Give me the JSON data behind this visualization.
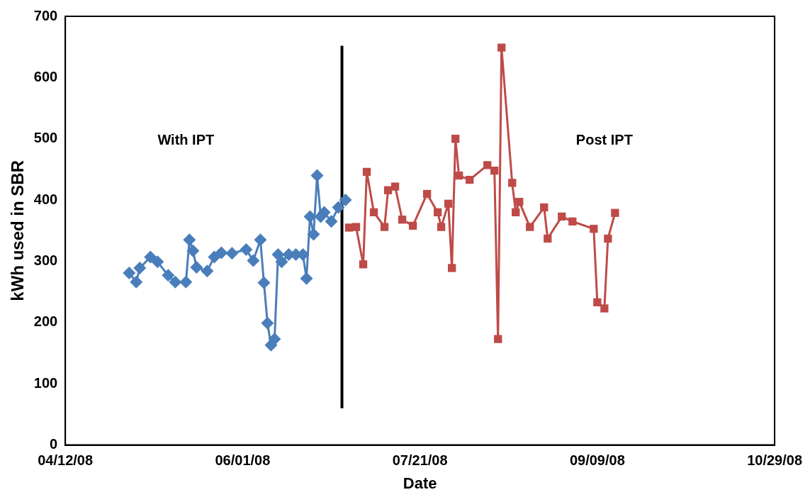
{
  "chart_data": {
    "type": "line",
    "xlabel": "Date",
    "ylabel": "kWh used in SBR",
    "xlim": [
      "2008-04-12",
      "2008-10-29"
    ],
    "xticks": [
      {
        "value": "2008-04-12",
        "label": "04/12/08"
      },
      {
        "value": "2008-06-01",
        "label": "06/01/08"
      },
      {
        "value": "2008-07-21",
        "label": "07/21/08"
      },
      {
        "value": "2008-09-09",
        "label": "09/09/08"
      },
      {
        "value": "2008-10-29",
        "label": "10/29/08"
      }
    ],
    "ylim": [
      0,
      700
    ],
    "yticks": [
      0,
      100,
      200,
      300,
      400,
      500,
      600,
      700
    ],
    "grid": false,
    "legend": false,
    "series": [
      {
        "color": "#4a7ebb",
        "marker": "diamond",
        "x": [
          "2008-04-30",
          "2008-05-02",
          "2008-05-03",
          "2008-05-06",
          "2008-05-08",
          "2008-05-11",
          "2008-05-13",
          "2008-05-16",
          "2008-05-17",
          "2008-05-18",
          "2008-05-19",
          "2008-05-22",
          "2008-05-24",
          "2008-05-26",
          "2008-05-29",
          "2008-06-02",
          "2008-06-04",
          "2008-06-06",
          "2008-06-07",
          "2008-06-08",
          "2008-06-09",
          "2008-06-10",
          "2008-06-11",
          "2008-06-12",
          "2008-06-14",
          "2008-06-16",
          "2008-06-18",
          "2008-06-19",
          "2008-06-20",
          "2008-06-21",
          "2008-06-22",
          "2008-06-23",
          "2008-06-24",
          "2008-06-26",
          "2008-06-28",
          "2008-06-30"
        ],
        "values": [
          281,
          266,
          289,
          307,
          299,
          277,
          266,
          266,
          335,
          317,
          290,
          284,
          307,
          314,
          313,
          319,
          301,
          335,
          265,
          199,
          163,
          173,
          311,
          299,
          311,
          311,
          311,
          272,
          373,
          344,
          440,
          373,
          380,
          365,
          388,
          400
        ]
      },
      {
        "color": "#be4b48",
        "marker": "square",
        "x": [
          "2008-07-01",
          "2008-07-03",
          "2008-07-05",
          "2008-07-06",
          "2008-07-08",
          "2008-07-11",
          "2008-07-12",
          "2008-07-14",
          "2008-07-16",
          "2008-07-19",
          "2008-07-23",
          "2008-07-26",
          "2008-07-27",
          "2008-07-29",
          "2008-07-30",
          "2008-07-31",
          "2008-08-01",
          "2008-08-04",
          "2008-08-09",
          "2008-08-11",
          "2008-08-12",
          "2008-08-13",
          "2008-08-16",
          "2008-08-17",
          "2008-08-18",
          "2008-08-21",
          "2008-08-25",
          "2008-08-26",
          "2008-08-30",
          "2008-09-02",
          "2008-09-08",
          "2008-09-09",
          "2008-09-11",
          "2008-09-12",
          "2008-09-14"
        ],
        "values": [
          355,
          356,
          295,
          446,
          380,
          356,
          416,
          422,
          368,
          358,
          410,
          380,
          356,
          394,
          289,
          500,
          440,
          433,
          457,
          448,
          173,
          649,
          428,
          380,
          397,
          356,
          388,
          337,
          373,
          365,
          353,
          233,
          223,
          337,
          379
        ]
      },
      {
        "color": "#000000",
        "marker": "none",
        "x": [
          "2008-06-29",
          "2008-06-29"
        ],
        "values": [
          60,
          652
        ]
      }
    ],
    "annotations": [
      "With IPT",
      "Post IPT"
    ]
  }
}
